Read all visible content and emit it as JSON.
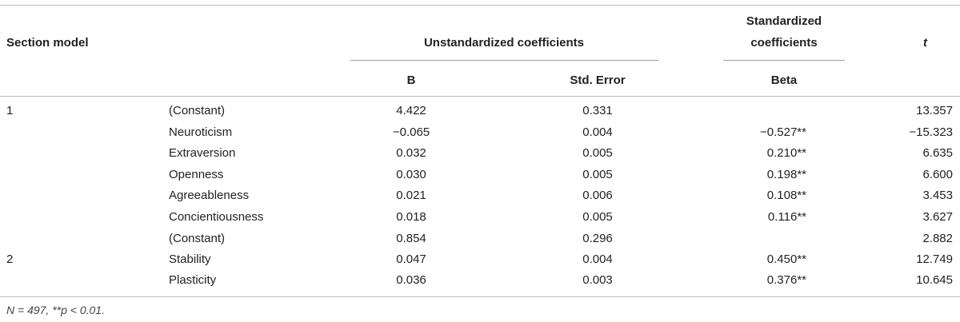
{
  "header": {
    "section_model": "Section model",
    "unstandardized": "Unstandardized coefficients",
    "standardized_line1": "Standardized",
    "standardized_line2": "coefficients",
    "t": "t",
    "b": "B",
    "std_error": "Std. Error",
    "beta": "Beta"
  },
  "rows": [
    {
      "model": "1",
      "predictor": "(Constant)",
      "b": "4.422",
      "se": "0.331",
      "beta": "",
      "t": "13.357"
    },
    {
      "model": "",
      "predictor": "Neuroticism",
      "b": "−0.065",
      "se": "0.004",
      "beta": "−0.527**",
      "t": "−15.323"
    },
    {
      "model": "",
      "predictor": "Extraversion",
      "b": "0.032",
      "se": "0.005",
      "beta": "0.210**",
      "t": "6.635"
    },
    {
      "model": "",
      "predictor": "Openness",
      "b": "0.030",
      "se": "0.005",
      "beta": "0.198**",
      "t": "6.600"
    },
    {
      "model": "",
      "predictor": "Agreeableness",
      "b": "0.021",
      "se": "0.006",
      "beta": "0.108**",
      "t": "3.453"
    },
    {
      "model": "",
      "predictor": "Concientiousness",
      "b": "0.018",
      "se": "0.005",
      "beta": "0.116**",
      "t": "3.627"
    },
    {
      "model": "",
      "predictor": "(Constant)",
      "b": "0.854",
      "se": "0.296",
      "beta": "",
      "t": "2.882"
    },
    {
      "model": "2",
      "predictor": "Stability",
      "b": "0.047",
      "se": "0.004",
      "beta": "0.450**",
      "t": "12.749"
    },
    {
      "model": "",
      "predictor": "Plasticity",
      "b": "0.036",
      "se": "0.003",
      "beta": "0.376**",
      "t": "10.645"
    }
  ],
  "footnote": "N = 497, **p < 0.01."
}
